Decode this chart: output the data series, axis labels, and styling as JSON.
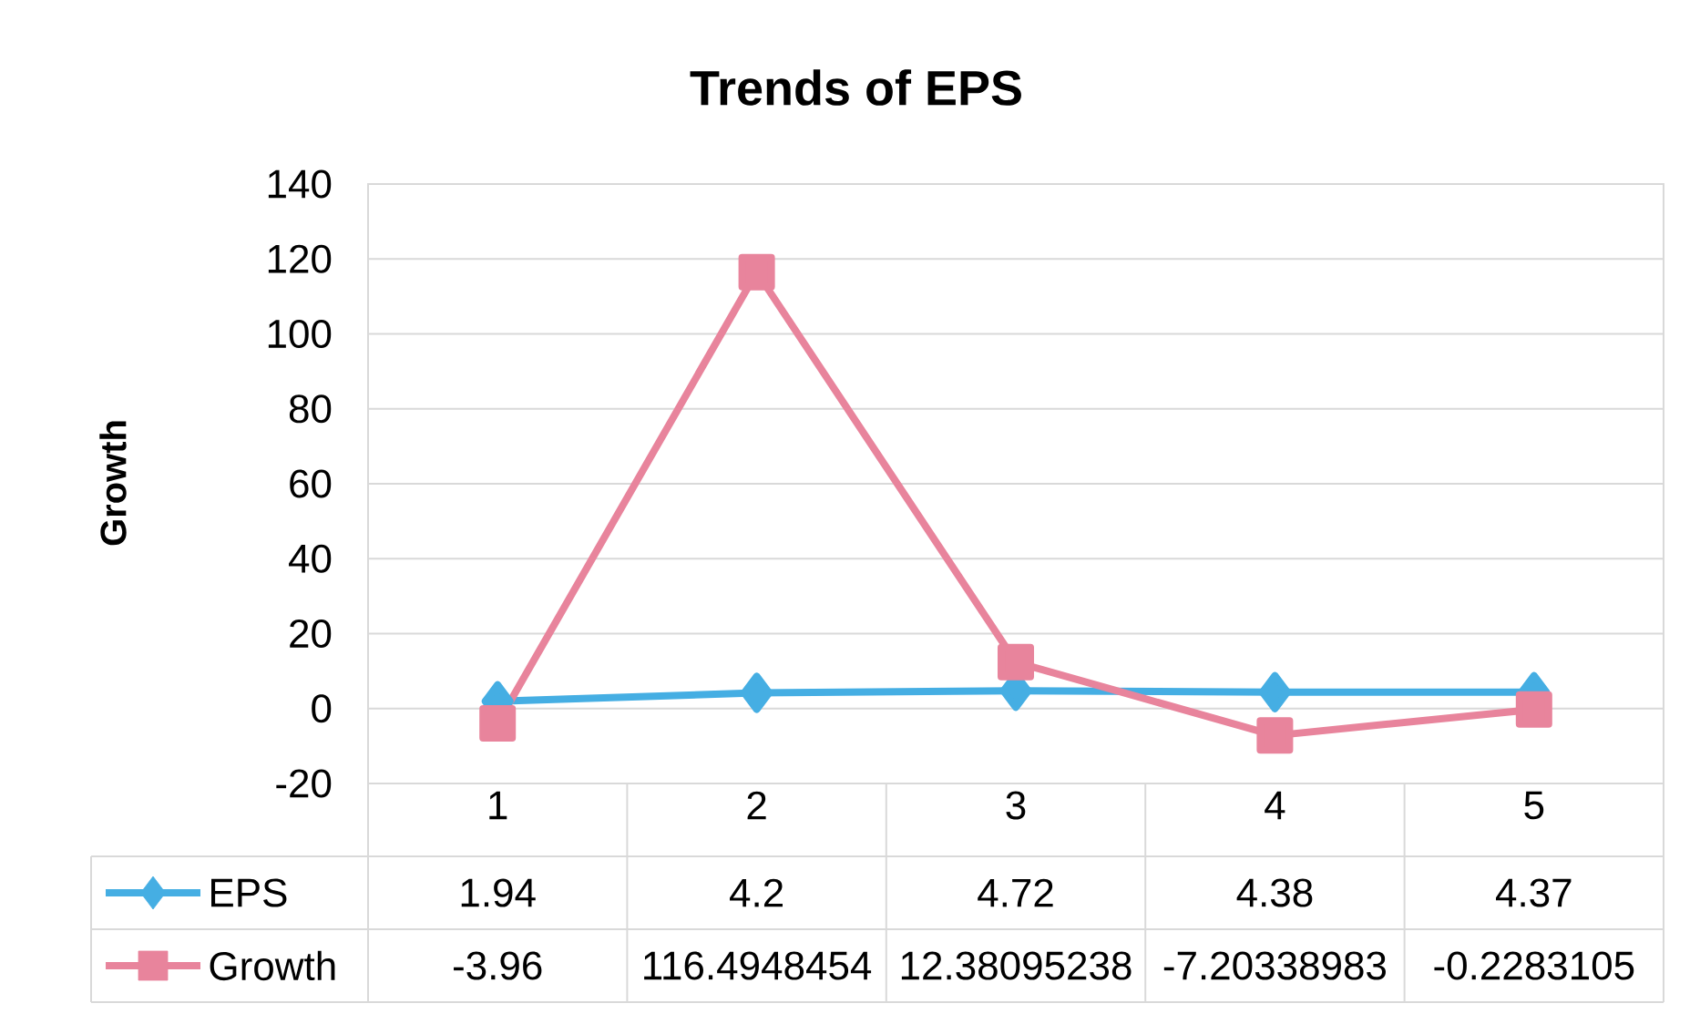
{
  "chart_data": {
    "type": "line",
    "title": "Trends of EPS",
    "ylabel": "Growth",
    "categories": [
      "1",
      "2",
      "3",
      "4",
      "5"
    ],
    "series": [
      {
        "name": "EPS",
        "color": "#45aee3",
        "marker": "diamond",
        "values": [
          1.94,
          4.2,
          4.72,
          4.38,
          4.37
        ]
      },
      {
        "name": "Growth",
        "color": "#e8849c",
        "marker": "square",
        "values": [
          -3.96,
          116.4948454,
          12.38095238,
          -7.20338983,
          -0.2283105
        ]
      }
    ],
    "ylim": [
      -20,
      140
    ],
    "yticks": [
      -20,
      0,
      20,
      40,
      60,
      80,
      100,
      120,
      140
    ],
    "grid": "y",
    "legend": "bottom",
    "data_labels": true
  }
}
